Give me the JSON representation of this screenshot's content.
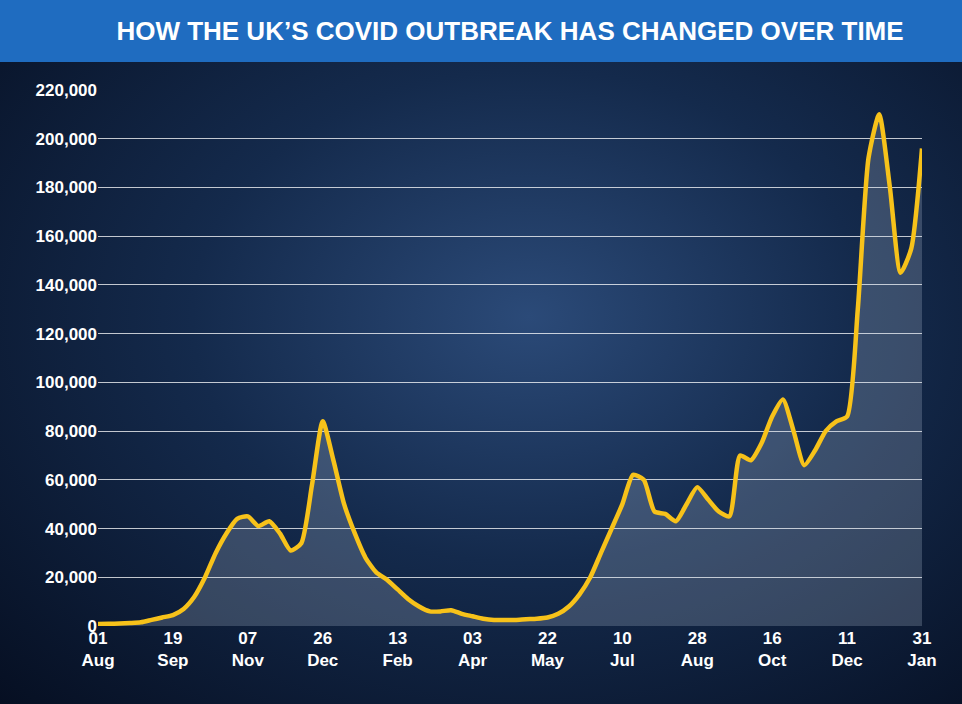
{
  "chart_data": {
    "type": "line",
    "title": "HOW THE UK’S COVID OUTBREAK HAS CHANGED OVER TIME",
    "categories": [
      "01 Aug",
      null,
      null,
      null,
      null,
      null,
      null,
      "19 Sep",
      null,
      null,
      null,
      null,
      null,
      null,
      "07 Nov",
      null,
      null,
      null,
      null,
      null,
      null,
      "26 Dec",
      null,
      null,
      null,
      null,
      null,
      null,
      "13 Feb",
      null,
      null,
      null,
      null,
      null,
      null,
      "03 Apr",
      null,
      null,
      null,
      null,
      null,
      null,
      "22 May",
      null,
      null,
      null,
      null,
      null,
      null,
      "10 Jul",
      null,
      null,
      null,
      null,
      null,
      null,
      "28 Aug",
      null,
      null,
      null,
      null,
      null,
      null,
      "16 Oct",
      null,
      null,
      null,
      null,
      null,
      null,
      "11 Dec",
      null,
      null,
      null,
      null,
      null,
      null,
      "31 Jan"
    ],
    "values": [
      800,
      900,
      1000,
      1200,
      1500,
      2500,
      3500,
      4500,
      7000,
      12000,
      20000,
      30000,
      38000,
      44000,
      45000,
      41000,
      43000,
      38000,
      31000,
      34000,
      58000,
      84000,
      68000,
      50000,
      38000,
      28000,
      22000,
      19000,
      15000,
      11000,
      8000,
      6000,
      6000,
      6500,
      5000,
      4000,
      3000,
      2500,
      2500,
      2500,
      2800,
      3000,
      3500,
      5000,
      8000,
      13000,
      20000,
      30000,
      40000,
      50000,
      62000,
      60000,
      47000,
      46000,
      43000,
      50000,
      57000,
      52000,
      47000,
      45000,
      70000,
      68000,
      75000,
      86000,
      93000,
      80000,
      66000,
      72000,
      80000,
      84000,
      86000,
      130000,
      192000,
      210000,
      180000,
      145000,
      155000,
      196000
    ],
    "color": "#f7c21a",
    "ylim": [
      0,
      220000
    ],
    "yticks": [
      0,
      {
        "value": 20000,
        "label": "20,000"
      },
      {
        "value": 40000,
        "label": "40,000"
      },
      {
        "value": 60000,
        "label": "60,000"
      },
      {
        "value": 80000,
        "label": "80,000"
      },
      {
        "value": 100000,
        "label": "100,000"
      },
      {
        "value": 120000,
        "label": "120,000"
      },
      {
        "value": 140000,
        "label": "140,000"
      },
      {
        "value": 160000,
        "label": "160,000"
      },
      {
        "value": 180000,
        "label": "180,000"
      },
      {
        "value": 200000,
        "label": "200,000"
      },
      {
        "value": 220000,
        "label": "220,000"
      }
    ],
    "grid": true
  }
}
